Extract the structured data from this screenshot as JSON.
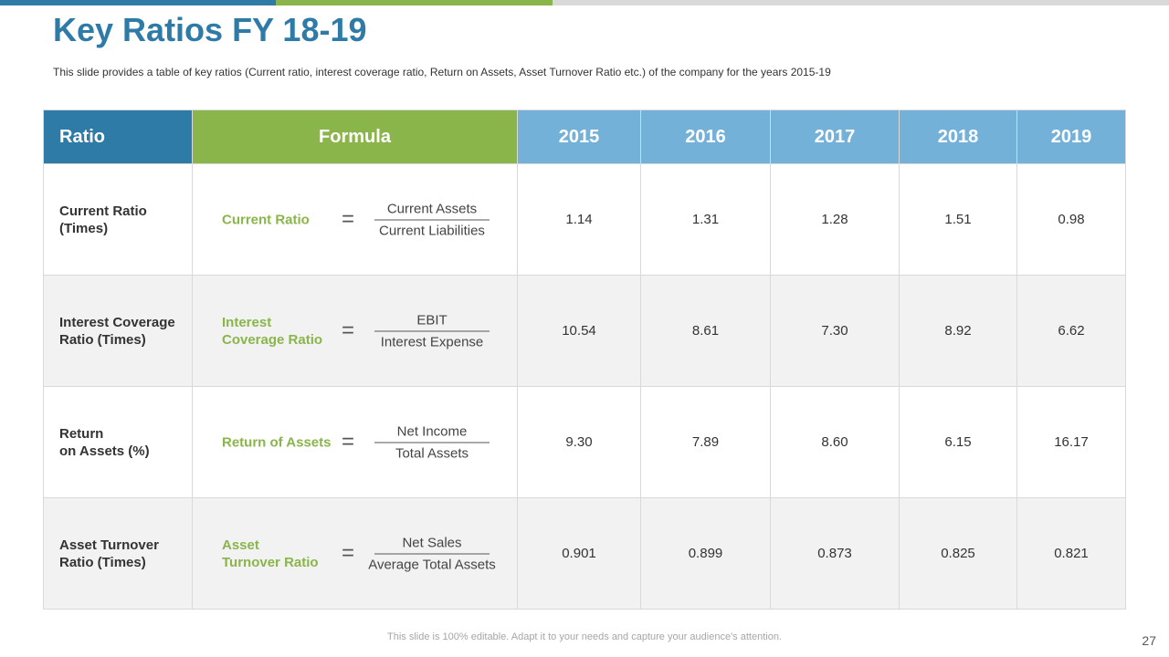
{
  "slide": {
    "title": "Key Ratios FY 18-19",
    "subtitle": "This slide provides  a table of key ratios (Current  ratio, interest coverage  ratio, Return  on Assets, Asset Turnover  Ratio etc.) of the company for the years 2015-19",
    "footer": "This slide is 100% editable. Adapt it to your needs and capture your audience's attention.",
    "page_number": "27"
  },
  "colors": {
    "accent_blue": "#2e7ba8",
    "accent_green": "#8ab54b",
    "year_header_blue": "#74b1d8"
  },
  "table": {
    "headers": {
      "ratio": "Ratio",
      "formula": "Formula",
      "years": [
        "2015",
        "2016",
        "2017",
        "2018",
        "2019"
      ]
    },
    "rows": [
      {
        "name_line1": "Current Ratio",
        "name_line2": "(Times)",
        "formula_label_line1": "Current Ratio",
        "formula_label_line2": "",
        "equals": "=",
        "numerator": "Current Assets",
        "denominator": "Current  Liabilities",
        "values": [
          "1.14",
          "1.31",
          "1.28",
          "1.51",
          "0.98"
        ]
      },
      {
        "name_line1": "Interest Coverage",
        "name_line2": "Ratio (Times)",
        "formula_label_line1": "Interest",
        "formula_label_line2": "Coverage Ratio",
        "equals": "=",
        "numerator": "EBIT",
        "denominator": "Interest  Expense",
        "values": [
          "10.54",
          "8.61",
          "7.30",
          "8.92",
          "6.62"
        ]
      },
      {
        "name_line1": "Return",
        "name_line2": "on Assets (%)",
        "formula_label_line1": "Return of Assets",
        "formula_label_line2": "",
        "equals": "=",
        "numerator": "Net Income",
        "denominator": "Total Assets",
        "values": [
          "9.30",
          "7.89",
          "8.60",
          "6.15",
          "16.17"
        ]
      },
      {
        "name_line1": "Asset Turnover",
        "name_line2": "Ratio (Times)",
        "formula_label_line1": "Asset",
        "formula_label_line2": "Turnover Ratio",
        "equals": "=",
        "numerator": "Net Sales",
        "denominator": "Average Total Assets",
        "values": [
          "0.901",
          "0.899",
          "0.873",
          "0.825",
          "0.821"
        ]
      }
    ]
  }
}
